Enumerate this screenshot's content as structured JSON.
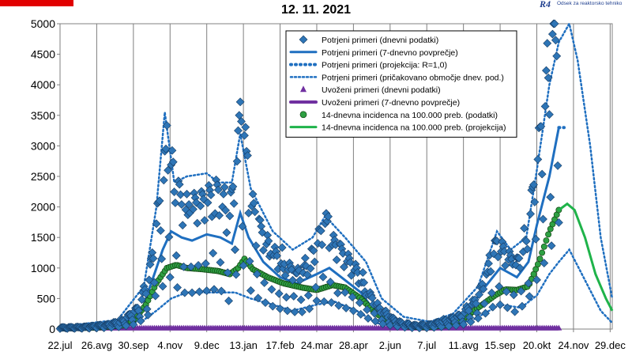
{
  "header": {
    "title": "12. 11. 2021",
    "logo_mark": "R4",
    "logo_text": "Odsek za reaktorsko tehniko",
    "accent_color": "#e10000"
  },
  "chart_data": {
    "type": "line",
    "title": "12. 11. 2021",
    "xlabel": "",
    "ylabel": "",
    "x_range": [
      "2020-07-22",
      "2021-12-31"
    ],
    "ylim": [
      0,
      5000
    ],
    "yticks": [
      0,
      500,
      1000,
      1500,
      2000,
      2500,
      3000,
      3500,
      4000,
      4500,
      5000
    ],
    "xtick_labels": [
      "22.jul",
      "26.avg",
      "30.sep",
      "4.nov",
      "9.dec",
      "13.jan",
      "17.feb",
      "24.mar",
      "28.apr",
      "2.jun",
      "7.jul",
      "11.avg",
      "15.sep",
      "20.okt",
      "24.nov",
      "29.dec"
    ],
    "xtick_dates": [
      "2020-07-22",
      "2020-08-26",
      "2020-09-30",
      "2020-11-04",
      "2020-12-09",
      "2021-01-13",
      "2021-02-17",
      "2021-03-24",
      "2021-04-28",
      "2021-06-02",
      "2021-07-07",
      "2021-08-11",
      "2021-09-15",
      "2021-10-20",
      "2021-11-24",
      "2021-12-29"
    ],
    "grid": "vertical",
    "legend_position": "top-right inside",
    "colors": {
      "confirmed": "#1f6fc0",
      "imported": "#7030a0",
      "incidence_marker": "#2ea043",
      "incidence_line": "#1fb34a",
      "grid": "#7f7f7f"
    },
    "series": [
      {
        "name": "Potrjeni primeri (dnevni podatki)",
        "style": "diamond-markers",
        "spread": "weekday cycle: low on Sundays/Mondays, high on weekdays",
        "points": [
          [
            "2020-07-22",
            20
          ],
          [
            "2020-08-15",
            30
          ],
          [
            "2020-09-05",
            60
          ],
          [
            "2020-09-20",
            120
          ],
          [
            "2020-10-05",
            300
          ],
          [
            "2020-10-15",
            700
          ],
          [
            "2020-10-22",
            1500
          ],
          [
            "2020-10-28",
            2000
          ],
          [
            "2020-11-02",
            2600
          ],
          [
            "2020-11-06",
            2250
          ],
          [
            "2020-11-15",
            1700
          ],
          [
            "2020-11-25",
            1700
          ],
          [
            "2020-12-10",
            1800
          ],
          [
            "2020-12-20",
            1900
          ],
          [
            "2020-12-30",
            1500
          ],
          [
            "2021-01-08",
            2500
          ],
          [
            "2021-01-11",
            3400
          ],
          [
            "2021-01-18",
            1900
          ],
          [
            "2021-01-28",
            1400
          ],
          [
            "2021-02-08",
            1100
          ],
          [
            "2021-02-20",
            900
          ],
          [
            "2021-03-01",
            800
          ],
          [
            "2021-03-12",
            800
          ],
          [
            "2021-03-22",
            1100
          ],
          [
            "2021-04-01",
            1500
          ],
          [
            "2021-04-08",
            1200
          ],
          [
            "2021-04-20",
            1000
          ],
          [
            "2021-05-01",
            800
          ],
          [
            "2021-05-12",
            500
          ],
          [
            "2021-05-25",
            250
          ],
          [
            "2021-06-10",
            100
          ],
          [
            "2021-06-25",
            50
          ],
          [
            "2021-07-10",
            60
          ],
          [
            "2021-07-25",
            120
          ],
          [
            "2021-08-10",
            200
          ],
          [
            "2021-08-25",
            450
          ],
          [
            "2021-09-05",
            900
          ],
          [
            "2021-09-12",
            1200
          ],
          [
            "2021-09-22",
            1000
          ],
          [
            "2021-10-01",
            900
          ],
          [
            "2021-10-10",
            1200
          ],
          [
            "2021-10-20",
            2300
          ],
          [
            "2021-10-26",
            3000
          ],
          [
            "2021-11-02",
            3600
          ],
          [
            "2021-11-05",
            4500
          ],
          [
            "2021-11-10",
            4450
          ]
        ]
      },
      {
        "name": "Potrjeni primeri (7-dnevno povprečje)",
        "style": "solid",
        "points": [
          [
            "2020-07-22",
            15
          ],
          [
            "2020-08-26",
            30
          ],
          [
            "2020-09-15",
            60
          ],
          [
            "2020-09-30",
            150
          ],
          [
            "2020-10-10",
            400
          ],
          [
            "2020-10-20",
            900
          ],
          [
            "2020-10-28",
            1300
          ],
          [
            "2020-11-05",
            1600
          ],
          [
            "2020-11-15",
            1500
          ],
          [
            "2020-11-25",
            1450
          ],
          [
            "2020-12-09",
            1550
          ],
          [
            "2020-12-22",
            1500
          ],
          [
            "2021-01-02",
            1400
          ],
          [
            "2021-01-10",
            1900
          ],
          [
            "2021-01-18",
            1500
          ],
          [
            "2021-02-01",
            1100
          ],
          [
            "2021-02-17",
            850
          ],
          [
            "2021-03-05",
            750
          ],
          [
            "2021-03-24",
            900
          ],
          [
            "2021-04-05",
            1000
          ],
          [
            "2021-04-20",
            800
          ],
          [
            "2021-05-05",
            600
          ],
          [
            "2021-05-20",
            250
          ],
          [
            "2021-06-10",
            80
          ],
          [
            "2021-07-07",
            60
          ],
          [
            "2021-07-28",
            120
          ],
          [
            "2021-08-15",
            300
          ],
          [
            "2021-09-01",
            700
          ],
          [
            "2021-09-15",
            1000
          ],
          [
            "2021-10-01",
            850
          ],
          [
            "2021-10-12",
            1100
          ],
          [
            "2021-10-20",
            1700
          ],
          [
            "2021-11-01",
            2500
          ],
          [
            "2021-11-10",
            3300
          ]
        ]
      },
      {
        "name": "Potrjeni primeri (projekcija: R=1,0)",
        "style": "dotted-heavy",
        "points": [
          [
            "2021-11-10",
            3300
          ],
          [
            "2021-11-15",
            3300
          ]
        ]
      },
      {
        "name": "Potrjeni primeri (pričakovano območje dnev. pod.)",
        "style": "dotted",
        "upper": [
          [
            "2020-07-22",
            40
          ],
          [
            "2020-09-15",
            150
          ],
          [
            "2020-10-10",
            700
          ],
          [
            "2020-10-22",
            2000
          ],
          [
            "2020-10-30",
            3550
          ],
          [
            "2020-11-08",
            2400
          ],
          [
            "2020-11-20",
            2500
          ],
          [
            "2020-12-09",
            2550
          ],
          [
            "2020-12-20",
            2400
          ],
          [
            "2021-01-02",
            2400
          ],
          [
            "2021-01-10",
            3200
          ],
          [
            "2021-01-20",
            2300
          ],
          [
            "2021-02-10",
            1600
          ],
          [
            "2021-03-01",
            1300
          ],
          [
            "2021-03-20",
            1500
          ],
          [
            "2021-04-01",
            1850
          ],
          [
            "2021-04-20",
            1500
          ],
          [
            "2021-05-10",
            1100
          ],
          [
            "2021-05-25",
            500
          ],
          [
            "2021-06-15",
            200
          ],
          [
            "2021-07-10",
            120
          ],
          [
            "2021-08-01",
            250
          ],
          [
            "2021-08-25",
            700
          ],
          [
            "2021-09-12",
            1600
          ],
          [
            "2021-09-25",
            1300
          ],
          [
            "2021-10-10",
            1500
          ],
          [
            "2021-10-20",
            2600
          ],
          [
            "2021-11-01",
            4000
          ],
          [
            "2021-11-10",
            4700
          ],
          [
            "2021-11-20",
            5000
          ],
          [
            "2021-11-28",
            4400
          ],
          [
            "2021-12-10",
            3000
          ],
          [
            "2021-12-20",
            1500
          ],
          [
            "2021-12-31",
            500
          ]
        ],
        "lower": [
          [
            "2020-07-22",
            5
          ],
          [
            "2020-09-15",
            20
          ],
          [
            "2020-10-10",
            150
          ],
          [
            "2020-10-22",
            300
          ],
          [
            "2020-11-05",
            500
          ],
          [
            "2020-11-20",
            600
          ],
          [
            "2020-12-09",
            600
          ],
          [
            "2021-01-05",
            600
          ],
          [
            "2021-01-20",
            500
          ],
          [
            "2021-02-10",
            400
          ],
          [
            "2021-03-01",
            300
          ],
          [
            "2021-03-24",
            400
          ],
          [
            "2021-04-10",
            450
          ],
          [
            "2021-05-01",
            300
          ],
          [
            "2021-05-20",
            100
          ],
          [
            "2021-06-15",
            20
          ],
          [
            "2021-07-20",
            30
          ],
          [
            "2021-08-20",
            150
          ],
          [
            "2021-09-15",
            400
          ],
          [
            "2021-10-05",
            350
          ],
          [
            "2021-10-20",
            550
          ],
          [
            "2021-11-01",
            900
          ],
          [
            "2021-11-10",
            1100
          ],
          [
            "2021-11-20",
            1300
          ],
          [
            "2021-12-05",
            800
          ],
          [
            "2021-12-20",
            300
          ],
          [
            "2021-12-31",
            100
          ]
        ]
      },
      {
        "name": "Uvoženi primeri (dnevni podatki)",
        "style": "triangle-markers",
        "points": [
          [
            "2020-07-22",
            5
          ],
          [
            "2021-11-10",
            5
          ]
        ]
      },
      {
        "name": "Uvoženi primeri (7-dnevno povprečje)",
        "style": "solid",
        "points": [
          [
            "2020-07-22",
            5
          ],
          [
            "2021-11-10",
            5
          ]
        ]
      },
      {
        "name": "14-dnevna incidenca na 100.000 preb. (podatki)",
        "style": "circle-markers",
        "points": [
          [
            "2020-07-22",
            10
          ],
          [
            "2020-08-26",
            25
          ],
          [
            "2020-09-20",
            60
          ],
          [
            "2020-10-01",
            150
          ],
          [
            "2020-10-12",
            400
          ],
          [
            "2020-10-22",
            750
          ],
          [
            "2020-11-01",
            1000
          ],
          [
            "2020-11-10",
            1050
          ],
          [
            "2020-11-20",
            1000
          ],
          [
            "2020-12-05",
            980
          ],
          [
            "2020-12-20",
            950
          ],
          [
            "2020-12-31",
            900
          ],
          [
            "2021-01-08",
            1000
          ],
          [
            "2021-01-14",
            1150
          ],
          [
            "2021-01-22",
            980
          ],
          [
            "2021-02-05",
            850
          ],
          [
            "2021-02-20",
            750
          ],
          [
            "2021-03-10",
            680
          ],
          [
            "2021-03-24",
            640
          ],
          [
            "2021-04-08",
            720
          ],
          [
            "2021-04-20",
            680
          ],
          [
            "2021-05-05",
            500
          ],
          [
            "2021-05-20",
            250
          ],
          [
            "2021-06-05",
            100
          ],
          [
            "2021-06-20",
            40
          ],
          [
            "2021-07-07",
            30
          ],
          [
            "2021-07-25",
            60
          ],
          [
            "2021-08-10",
            150
          ],
          [
            "2021-08-25",
            350
          ],
          [
            "2021-09-10",
            550
          ],
          [
            "2021-09-20",
            650
          ],
          [
            "2021-10-01",
            640
          ],
          [
            "2021-10-12",
            700
          ],
          [
            "2021-10-22",
            1100
          ],
          [
            "2021-11-01",
            1600
          ],
          [
            "2021-11-10",
            1950
          ]
        ]
      },
      {
        "name": "14-dnevna incidenca na 100.000 preb. (projekcija)",
        "style": "solid",
        "points": [
          [
            "2021-11-10",
            1950
          ],
          [
            "2021-11-18",
            2050
          ],
          [
            "2021-11-25",
            1950
          ],
          [
            "2021-12-05",
            1500
          ],
          [
            "2021-12-15",
            900
          ],
          [
            "2021-12-25",
            500
          ],
          [
            "2021-12-31",
            300
          ]
        ]
      }
    ]
  }
}
